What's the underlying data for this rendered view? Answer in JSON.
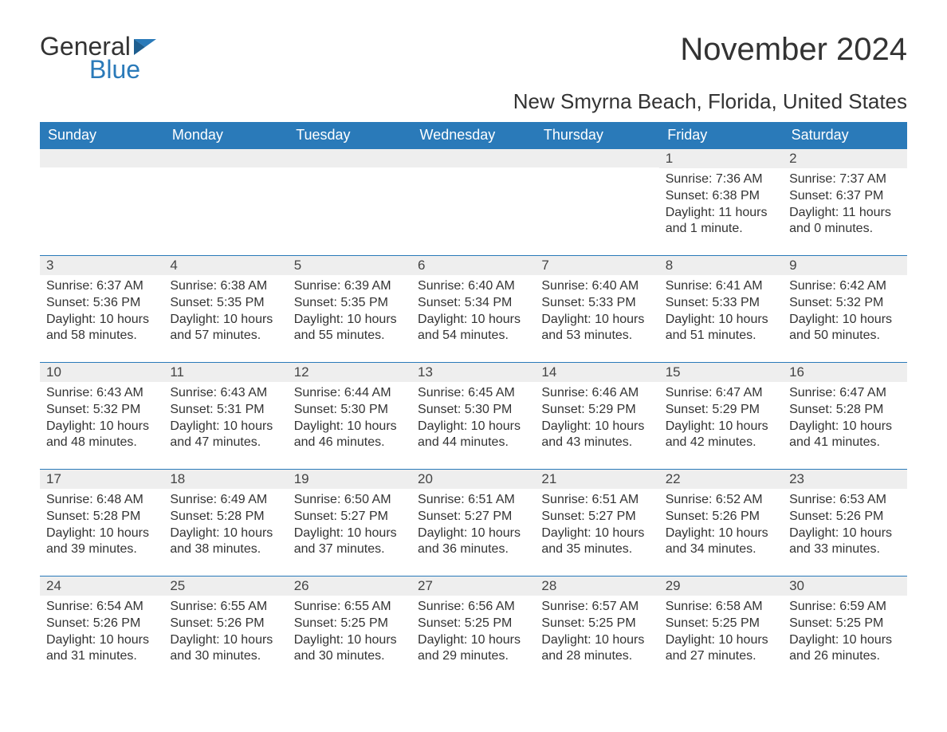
{
  "logo": {
    "general": "General",
    "blue": "Blue",
    "flag_color": "#2a7ab9"
  },
  "title": "November 2024",
  "location": "New Smyrna Beach, Florida, United States",
  "colors": {
    "header_bg": "#2a7ab9",
    "header_text": "#ffffff",
    "day_bg": "#eeeeee",
    "border": "#2a7ab9",
    "text": "#333333",
    "background": "#ffffff"
  },
  "weekdays": [
    "Sunday",
    "Monday",
    "Tuesday",
    "Wednesday",
    "Thursday",
    "Friday",
    "Saturday"
  ],
  "weeks": [
    [
      {
        "blank": true
      },
      {
        "blank": true
      },
      {
        "blank": true
      },
      {
        "blank": true
      },
      {
        "blank": true
      },
      {
        "day": "1",
        "sunrise": "Sunrise: 7:36 AM",
        "sunset": "Sunset: 6:38 PM",
        "daylight": "Daylight: 11 hours and 1 minute."
      },
      {
        "day": "2",
        "sunrise": "Sunrise: 7:37 AM",
        "sunset": "Sunset: 6:37 PM",
        "daylight": "Daylight: 11 hours and 0 minutes."
      }
    ],
    [
      {
        "day": "3",
        "sunrise": "Sunrise: 6:37 AM",
        "sunset": "Sunset: 5:36 PM",
        "daylight": "Daylight: 10 hours and 58 minutes."
      },
      {
        "day": "4",
        "sunrise": "Sunrise: 6:38 AM",
        "sunset": "Sunset: 5:35 PM",
        "daylight": "Daylight: 10 hours and 57 minutes."
      },
      {
        "day": "5",
        "sunrise": "Sunrise: 6:39 AM",
        "sunset": "Sunset: 5:35 PM",
        "daylight": "Daylight: 10 hours and 55 minutes."
      },
      {
        "day": "6",
        "sunrise": "Sunrise: 6:40 AM",
        "sunset": "Sunset: 5:34 PM",
        "daylight": "Daylight: 10 hours and 54 minutes."
      },
      {
        "day": "7",
        "sunrise": "Sunrise: 6:40 AM",
        "sunset": "Sunset: 5:33 PM",
        "daylight": "Daylight: 10 hours and 53 minutes."
      },
      {
        "day": "8",
        "sunrise": "Sunrise: 6:41 AM",
        "sunset": "Sunset: 5:33 PM",
        "daylight": "Daylight: 10 hours and 51 minutes."
      },
      {
        "day": "9",
        "sunrise": "Sunrise: 6:42 AM",
        "sunset": "Sunset: 5:32 PM",
        "daylight": "Daylight: 10 hours and 50 minutes."
      }
    ],
    [
      {
        "day": "10",
        "sunrise": "Sunrise: 6:43 AM",
        "sunset": "Sunset: 5:32 PM",
        "daylight": "Daylight: 10 hours and 48 minutes."
      },
      {
        "day": "11",
        "sunrise": "Sunrise: 6:43 AM",
        "sunset": "Sunset: 5:31 PM",
        "daylight": "Daylight: 10 hours and 47 minutes."
      },
      {
        "day": "12",
        "sunrise": "Sunrise: 6:44 AM",
        "sunset": "Sunset: 5:30 PM",
        "daylight": "Daylight: 10 hours and 46 minutes."
      },
      {
        "day": "13",
        "sunrise": "Sunrise: 6:45 AM",
        "sunset": "Sunset: 5:30 PM",
        "daylight": "Daylight: 10 hours and 44 minutes."
      },
      {
        "day": "14",
        "sunrise": "Sunrise: 6:46 AM",
        "sunset": "Sunset: 5:29 PM",
        "daylight": "Daylight: 10 hours and 43 minutes."
      },
      {
        "day": "15",
        "sunrise": "Sunrise: 6:47 AM",
        "sunset": "Sunset: 5:29 PM",
        "daylight": "Daylight: 10 hours and 42 minutes."
      },
      {
        "day": "16",
        "sunrise": "Sunrise: 6:47 AM",
        "sunset": "Sunset: 5:28 PM",
        "daylight": "Daylight: 10 hours and 41 minutes."
      }
    ],
    [
      {
        "day": "17",
        "sunrise": "Sunrise: 6:48 AM",
        "sunset": "Sunset: 5:28 PM",
        "daylight": "Daylight: 10 hours and 39 minutes."
      },
      {
        "day": "18",
        "sunrise": "Sunrise: 6:49 AM",
        "sunset": "Sunset: 5:28 PM",
        "daylight": "Daylight: 10 hours and 38 minutes."
      },
      {
        "day": "19",
        "sunrise": "Sunrise: 6:50 AM",
        "sunset": "Sunset: 5:27 PM",
        "daylight": "Daylight: 10 hours and 37 minutes."
      },
      {
        "day": "20",
        "sunrise": "Sunrise: 6:51 AM",
        "sunset": "Sunset: 5:27 PM",
        "daylight": "Daylight: 10 hours and 36 minutes."
      },
      {
        "day": "21",
        "sunrise": "Sunrise: 6:51 AM",
        "sunset": "Sunset: 5:27 PM",
        "daylight": "Daylight: 10 hours and 35 minutes."
      },
      {
        "day": "22",
        "sunrise": "Sunrise: 6:52 AM",
        "sunset": "Sunset: 5:26 PM",
        "daylight": "Daylight: 10 hours and 34 minutes."
      },
      {
        "day": "23",
        "sunrise": "Sunrise: 6:53 AM",
        "sunset": "Sunset: 5:26 PM",
        "daylight": "Daylight: 10 hours and 33 minutes."
      }
    ],
    [
      {
        "day": "24",
        "sunrise": "Sunrise: 6:54 AM",
        "sunset": "Sunset: 5:26 PM",
        "daylight": "Daylight: 10 hours and 31 minutes."
      },
      {
        "day": "25",
        "sunrise": "Sunrise: 6:55 AM",
        "sunset": "Sunset: 5:26 PM",
        "daylight": "Daylight: 10 hours and 30 minutes."
      },
      {
        "day": "26",
        "sunrise": "Sunrise: 6:55 AM",
        "sunset": "Sunset: 5:25 PM",
        "daylight": "Daylight: 10 hours and 30 minutes."
      },
      {
        "day": "27",
        "sunrise": "Sunrise: 6:56 AM",
        "sunset": "Sunset: 5:25 PM",
        "daylight": "Daylight: 10 hours and 29 minutes."
      },
      {
        "day": "28",
        "sunrise": "Sunrise: 6:57 AM",
        "sunset": "Sunset: 5:25 PM",
        "daylight": "Daylight: 10 hours and 28 minutes."
      },
      {
        "day": "29",
        "sunrise": "Sunrise: 6:58 AM",
        "sunset": "Sunset: 5:25 PM",
        "daylight": "Daylight: 10 hours and 27 minutes."
      },
      {
        "day": "30",
        "sunrise": "Sunrise: 6:59 AM",
        "sunset": "Sunset: 5:25 PM",
        "daylight": "Daylight: 10 hours and 26 minutes."
      }
    ]
  ]
}
